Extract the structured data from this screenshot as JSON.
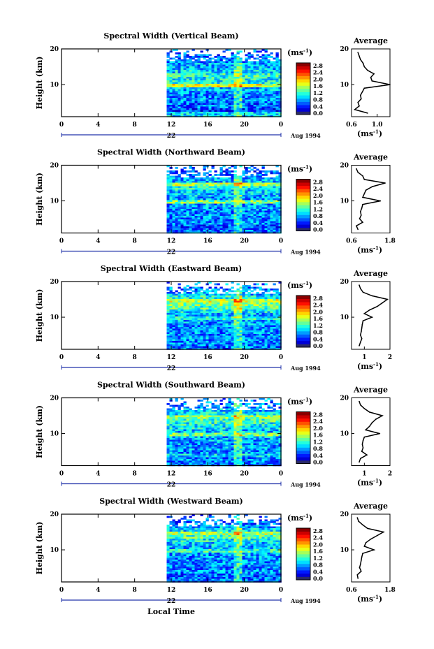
{
  "figure": {
    "xlabel": "Local Time",
    "date_label": "Aug 1994",
    "day_label": "22",
    "ylabel": "Height (km)",
    "avg_title": "Average",
    "unit_label": "(ms",
    "unit_sup": "-1",
    "unit_close": ")",
    "unit_axis_label": "(ms",
    "unit_axis_sup": "-1",
    "unit_axis_close": ")"
  },
  "chart_data": [
    {
      "type": "heatmap",
      "title": "Spectral Width (Vertical Beam)",
      "xlabel": "",
      "ylabel": "Height (km)",
      "x_ticks": [
        "0",
        "4",
        "8",
        "12",
        "16",
        "20",
        "0"
      ],
      "xlim": [
        0,
        24
      ],
      "y_ticks": [
        "10",
        "20"
      ],
      "ylim": [
        1,
        20
      ],
      "data_start_hour": 11.5,
      "colorbar": {
        "ticks": [
          "0.0",
          "0.4",
          "0.8",
          "1.2",
          "1.6",
          "2.0",
          "2.4",
          "2.8"
        ],
        "range": [
          0,
          3.0
        ]
      },
      "average": {
        "xlim": [
          0.6,
          1.2
        ],
        "x_ticks": [
          "0.6",
          "1.0"
        ],
        "ylim": [
          1,
          20
        ],
        "y_ticks": [
          "10",
          "20"
        ],
        "heights": [
          2,
          3,
          4,
          5,
          6,
          7,
          8,
          9,
          10,
          11,
          12,
          13,
          14,
          15,
          16,
          17,
          18,
          19
        ],
        "values": [
          0.85,
          0.65,
          0.72,
          0.7,
          0.75,
          0.74,
          0.77,
          0.8,
          1.2,
          0.92,
          0.9,
          0.95,
          0.85,
          0.8,
          0.78,
          0.74,
          0.72,
          0.7
        ]
      }
    },
    {
      "type": "heatmap",
      "title": "Spectral Width (Northward Beam)",
      "xlabel": "",
      "ylabel": "Height (km)",
      "x_ticks": [
        "0",
        "4",
        "8",
        "12",
        "16",
        "20",
        "0"
      ],
      "xlim": [
        0,
        24
      ],
      "y_ticks": [
        "10",
        "20"
      ],
      "ylim": [
        1,
        20
      ],
      "data_start_hour": 11.5,
      "colorbar": {
        "ticks": [
          "0.0",
          "0.4",
          "0.8",
          "1.2",
          "1.6",
          "2.0",
          "2.4",
          "2.8"
        ],
        "range": [
          0,
          3.0
        ]
      },
      "average": {
        "xlim": [
          0.6,
          1.8
        ],
        "x_ticks": [
          "0.6",
          "1.8"
        ],
        "ylim": [
          1,
          20
        ],
        "y_ticks": [
          "10",
          "20"
        ],
        "heights": [
          2,
          3,
          4,
          5,
          6,
          7,
          8,
          9,
          10,
          11,
          12,
          13,
          14,
          15,
          16,
          17,
          18,
          19
        ],
        "values": [
          0.8,
          0.75,
          0.95,
          0.85,
          0.9,
          0.88,
          0.92,
          0.95,
          1.5,
          0.95,
          1.0,
          1.05,
          1.25,
          1.65,
          1.0,
          0.95,
          0.8,
          0.75
        ]
      }
    },
    {
      "type": "heatmap",
      "title": "Spectral Width (Eastward Beam)",
      "xlabel": "",
      "ylabel": "Height (km)",
      "x_ticks": [
        "0",
        "4",
        "8",
        "12",
        "16",
        "20",
        "0"
      ],
      "xlim": [
        0,
        24
      ],
      "y_ticks": [
        "10",
        "20"
      ],
      "ylim": [
        1,
        20
      ],
      "data_start_hour": 11.5,
      "colorbar": {
        "ticks": [
          "0.0",
          "0.4",
          "0.8",
          "1.2",
          "1.6",
          "2.0",
          "2.4",
          "2.8"
        ],
        "range": [
          0,
          3.0
        ]
      },
      "average": {
        "xlim": [
          0.5,
          2.0
        ],
        "x_ticks": [
          "1",
          "2"
        ],
        "ylim": [
          1,
          20
        ],
        "y_ticks": [
          "10",
          "20"
        ],
        "heights": [
          2,
          3,
          4,
          5,
          6,
          7,
          8,
          9,
          10,
          11,
          12,
          13,
          14,
          15,
          16,
          17,
          18,
          19
        ],
        "values": [
          0.8,
          0.85,
          0.9,
          0.85,
          0.88,
          0.9,
          0.92,
          0.95,
          1.3,
          1.0,
          1.2,
          1.5,
          1.7,
          1.9,
          1.3,
          0.95,
          0.85,
          0.8
        ]
      }
    },
    {
      "type": "heatmap",
      "title": "Spectral Width (Southward Beam)",
      "xlabel": "",
      "ylabel": "Height (km)",
      "x_ticks": [
        "0",
        "4",
        "8",
        "12",
        "16",
        "20",
        "0"
      ],
      "xlim": [
        0,
        24
      ],
      "y_ticks": [
        "10",
        "20"
      ],
      "ylim": [
        1,
        20
      ],
      "data_start_hour": 11.5,
      "colorbar": {
        "ticks": [
          "0.0",
          "0.4",
          "0.8",
          "1.2",
          "1.6",
          "2.0",
          "2.4",
          "2.8"
        ],
        "range": [
          0,
          3.0
        ]
      },
      "average": {
        "xlim": [
          0.5,
          2.0
        ],
        "x_ticks": [
          "1",
          "2"
        ],
        "ylim": [
          1,
          20
        ],
        "y_ticks": [
          "10",
          "20"
        ],
        "heights": [
          2,
          3,
          4,
          5,
          6,
          7,
          8,
          9,
          10,
          11,
          12,
          13,
          14,
          15,
          16,
          17,
          18,
          19
        ],
        "values": [
          0.8,
          0.85,
          1.1,
          0.9,
          0.95,
          0.92,
          0.95,
          1.0,
          1.6,
          1.05,
          1.2,
          1.3,
          1.45,
          1.7,
          1.2,
          1.0,
          0.85,
          0.8
        ]
      }
    },
    {
      "type": "heatmap",
      "title": "Spectral Width (Westward Beam)",
      "xlabel": "Local Time",
      "ylabel": "Height (km)",
      "x_ticks": [
        "0",
        "4",
        "8",
        "12",
        "16",
        "20",
        "0"
      ],
      "xlim": [
        0,
        24
      ],
      "y_ticks": [
        "10",
        "20"
      ],
      "ylim": [
        1,
        20
      ],
      "data_start_hour": 11.5,
      "colorbar": {
        "ticks": [
          "0.0",
          "0.4",
          "0.8",
          "1.2",
          "1.6",
          "2.0",
          "2.4",
          "2.8"
        ],
        "range": [
          0,
          3.0
        ]
      },
      "average": {
        "xlim": [
          0.6,
          1.8
        ],
        "x_ticks": [
          "0.6",
          "1.8"
        ],
        "ylim": [
          1,
          20
        ],
        "y_ticks": [
          "10",
          "20"
        ],
        "heights": [
          2,
          3,
          4,
          5,
          6,
          7,
          8,
          9,
          10,
          11,
          12,
          13,
          14,
          15,
          16,
          17,
          18,
          19
        ],
        "values": [
          0.8,
          0.78,
          0.9,
          0.85,
          0.88,
          0.9,
          0.92,
          0.95,
          1.3,
          1.0,
          1.05,
          1.2,
          1.4,
          1.6,
          1.1,
          0.95,
          0.82,
          0.78
        ]
      }
    }
  ]
}
